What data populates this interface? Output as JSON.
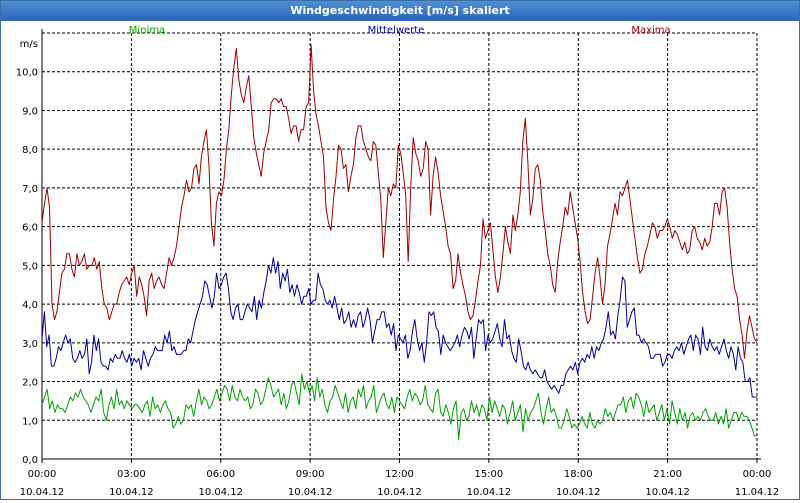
{
  "window": {
    "title": "Windgeschwindigkeit [m/s] skaliert"
  },
  "chart_data": {
    "type": "line",
    "title": "Windgeschwindigkeit [m/s] skaliert",
    "ylabel": "m/s",
    "ylim": [
      0,
      11
    ],
    "yticks": [
      "0,0",
      "1,0",
      "2,0",
      "3,0",
      "4,0",
      "5,0",
      "6,0",
      "7,0",
      "8,0",
      "9,0",
      "10,0"
    ],
    "xlim": [
      0,
      24
    ],
    "xticks": [
      {
        "time": "00:00",
        "date": "10.04.12"
      },
      {
        "time": "03:00",
        "date": "10.04.12"
      },
      {
        "time": "06:00",
        "date": "10.04.12"
      },
      {
        "time": "09:00",
        "date": "10.04.12"
      },
      {
        "time": "12:00",
        "date": "10.04.12"
      },
      {
        "time": "15:00",
        "date": "10.04.12"
      },
      {
        "time": "18:00",
        "date": "10.04.12"
      },
      {
        "time": "21:00",
        "date": "10.04.12"
      },
      {
        "time": "00:00",
        "date": "11.04.12"
      }
    ],
    "grid": true,
    "series": [
      {
        "name": "Minima",
        "color": "#00a000",
        "values": [
          1.4,
          1.6,
          1.8,
          1.3,
          1.5,
          1.2,
          1.4,
          1.3,
          1.3,
          1.2,
          1.4,
          1.6,
          1.5,
          1.7,
          1.6,
          1.8,
          1.6,
          1.5,
          1.4,
          1.2,
          1.4,
          1.6,
          1.5,
          1.8,
          1.2,
          1.0,
          1.4,
          1.6,
          1.3,
          1.8,
          1.4,
          1.5,
          1.3,
          1.5,
          1.4,
          1.3,
          1.4,
          1.4,
          1.3,
          1.2,
          1.4,
          1.5,
          1.1,
          1.6,
          1.3,
          1.4,
          1.2,
          1.4,
          1.5,
          1.3,
          1.2,
          0.8,
          0.9,
          1.1,
          0.9,
          1.0,
          1.4,
          1.3,
          1.4,
          1.1,
          1.5,
          1.8,
          1.4,
          1.6,
          1.5,
          1.3,
          1.4,
          1.6,
          1.8,
          1.5,
          1.7,
          1.9,
          1.8,
          1.5,
          1.9,
          1.6,
          1.5,
          1.8,
          1.6,
          1.5,
          1.6,
          1.3,
          1.4,
          1.8,
          1.7,
          1.4,
          1.5,
          1.8,
          2.1,
          1.9,
          1.6,
          1.7,
          1.8,
          1.4,
          1.7,
          1.3,
          1.5,
          1.9,
          2.0,
          1.7,
          1.4,
          2.2,
          1.8,
          2.0,
          1.7,
          1.9,
          1.5,
          2.1,
          1.6,
          1.8,
          1.4,
          1.2,
          1.5,
          1.6,
          1.9,
          1.7,
          1.5,
          1.3,
          1.7,
          1.2,
          1.5,
          1.6,
          1.3,
          1.8,
          1.6,
          1.9,
          1.3,
          1.5,
          1.6,
          1.9,
          1.2,
          1.4,
          1.6,
          1.7,
          1.4,
          1.3,
          1.6,
          1.2,
          1.6,
          1.5,
          1.4,
          1.3,
          1.6,
          1.8,
          1.5,
          1.7,
          1.6,
          1.4,
          1.5,
          1.9,
          1.4,
          1.3,
          1.2,
          1.7,
          1.8,
          1.2,
          1.1,
          1.4,
          1.2,
          0.9,
          1.3,
          1.5,
          0.5,
          1.2,
          1.3,
          1.0,
          1.1,
          1.5,
          1.2,
          1.4,
          1.1,
          1.4,
          1.3,
          1.0,
          1.6,
          1.2,
          1.5,
          1.3,
          1.1,
          1.4,
          1.3,
          0.9,
          1.2,
          1.5,
          1.0,
          1.2,
          1.4,
          0.7,
          1.3,
          1.0,
          1.2,
          1.3,
          1.5,
          1.7,
          1.2,
          0.9,
          1.3,
          1.6,
          1.2,
          1.3,
          1.1,
          0.8,
          0.8,
          1.0,
          1.3,
          1.1,
          0.8,
          0.9,
          0.8,
          0.9,
          1.1,
          0.9,
          0.8,
          1.2,
          0.9,
          0.8,
          1.0,
          0.9,
          1.0,
          1.3,
          1.1,
          1.2,
          1.0,
          1.2,
          1.4,
          1.4,
          1.6,
          1.2,
          1.5,
          1.6,
          1.3,
          1.7,
          1.6,
          1.4,
          1.1,
          1.5,
          1.2,
          1.3,
          1.4,
          1.0,
          1.2,
          1.4,
          1.0,
          1.3,
          0.9,
          1.5,
          1.2,
          0.9,
          1.3,
          1.0,
          1.2,
          0.8,
          1.1,
          1.2,
          1.0,
          1.1,
          1.0,
          1.2,
          1.3,
          1.1,
          1.0,
          1.0,
          1.2,
          0.9,
          1.1,
          0.9,
          1.3,
          0.8,
          1.0,
          1.2,
          1.2,
          1.0,
          1.2,
          1.1,
          1.1,
          1.0,
          0.8,
          0.6,
          0.6
        ]
      },
      {
        "name": "Mittelwerte",
        "color": "#0000a0",
        "values": [
          3.1,
          3.8,
          2.9,
          3.2,
          2.4,
          2.4,
          2.6,
          2.9,
          2.8,
          3.0,
          3.2,
          3.0,
          3.1,
          2.6,
          2.5,
          2.6,
          2.8,
          2.6,
          2.7,
          3.1,
          2.2,
          2.5,
          3.2,
          2.8,
          3.1,
          2.5,
          2.4,
          2.4,
          2.3,
          2.6,
          2.5,
          2.7,
          2.6,
          2.6,
          2.8,
          2.6,
          2.5,
          2.7,
          2.4,
          2.6,
          2.5,
          2.6,
          2.3,
          2.8,
          2.6,
          2.4,
          2.6,
          2.7,
          2.9,
          2.8,
          2.8,
          2.8,
          3.2,
          3.0,
          3.3,
          2.8,
          2.9,
          2.7,
          2.7,
          2.7,
          2.8,
          2.8,
          3.1,
          3.0,
          3.3,
          3.6,
          3.8,
          4.0,
          4.2,
          4.6,
          4.5,
          4.2,
          3.9,
          4.2,
          4.8,
          4.4,
          4.5,
          4.7,
          4.8,
          4.4,
          3.8,
          3.6,
          3.9,
          4.0,
          3.6,
          3.6,
          3.8,
          4.0,
          3.9,
          3.8,
          4.2,
          3.6,
          4.1,
          3.9,
          4.3,
          4.6,
          5.0,
          4.8,
          5.2,
          4.8,
          5.1,
          4.4,
          4.8,
          4.6,
          4.9,
          4.3,
          4.5,
          4.2,
          4.5,
          4.3,
          4.0,
          4.2,
          4.2,
          4.4,
          4.0,
          4.1,
          4.1,
          4.8,
          4.5,
          4.4,
          4.1,
          4.0,
          4.1,
          3.9,
          4.2,
          3.9,
          3.6,
          3.9,
          3.5,
          3.6,
          3.8,
          3.4,
          3.6,
          3.4,
          3.7,
          3.8,
          3.4,
          3.6,
          3.9,
          3.6,
          3.0,
          3.3,
          3.6,
          3.6,
          3.8,
          3.8,
          3.4,
          3.5,
          3.2,
          3.5,
          2.8,
          3.2,
          3.1,
          3.0,
          3.2,
          2.6,
          2.8,
          3.3,
          3.6,
          3.1,
          2.8,
          3.0,
          2.5,
          3.0,
          3.8,
          3.7,
          3.8,
          3.4,
          3.3,
          2.7,
          3.2,
          3.0,
          2.9,
          2.8,
          2.9,
          3.0,
          3.2,
          2.9,
          3.2,
          3.4,
          3.3,
          3.1,
          3.4,
          2.6,
          3.1,
          3.6,
          3.5,
          3.6,
          2.8,
          3.2,
          3.0,
          3.1,
          3.3,
          3.5,
          3.1,
          2.9,
          3.6,
          3.1,
          3.2,
          2.8,
          2.6,
          2.5,
          3.1,
          2.8,
          2.4,
          2.3,
          2.5,
          2.3,
          2.2,
          2.3,
          2.2,
          2.1,
          2.1,
          2.3,
          2.0,
          1.9,
          1.8,
          1.9,
          1.8,
          1.7,
          1.9,
          1.9,
          2.2,
          2.3,
          2.4,
          2.3,
          2.5,
          2.2,
          2.5,
          2.6,
          2.5,
          2.7,
          2.6,
          2.9,
          2.6,
          2.9,
          2.8,
          3.0,
          3.1,
          3.4,
          3.8,
          3.2,
          3.3,
          3.1,
          3.7,
          4.1,
          4.7,
          4.6,
          3.4,
          3.6,
          3.8,
          3.9,
          3.2,
          3.2,
          3.0,
          3.1,
          3.0,
          2.9,
          2.6,
          2.6,
          2.7,
          2.7,
          2.7,
          2.4,
          2.5,
          2.7,
          2.7,
          2.6,
          2.8,
          2.9,
          2.8,
          3.0,
          2.7,
          2.9,
          3.1,
          3.2,
          2.8,
          3.2,
          3.1,
          2.7,
          3.4,
          2.9,
          2.8,
          3.1,
          2.9,
          2.8,
          2.9,
          2.7,
          2.9,
          3.1,
          2.8,
          2.6,
          2.9,
          2.7,
          2.3,
          2.9,
          2.6,
          2.5,
          2.0,
          2.0,
          2.1,
          1.6,
          1.6,
          1.6
        ]
      },
      {
        "name": "Maxima",
        "color": "#a00000",
        "values": [
          6.1,
          6.6,
          7.0,
          6.5,
          4.0,
          3.6,
          3.8,
          4.3,
          4.8,
          4.9,
          5.3,
          5.3,
          4.9,
          4.7,
          5.3,
          5.0,
          5.1,
          5.3,
          4.9,
          5.0,
          5.0,
          5.2,
          4.9,
          5.1,
          4.4,
          4.0,
          3.9,
          3.6,
          3.8,
          4.0,
          4.0,
          4.3,
          4.5,
          4.6,
          4.7,
          4.5,
          4.8,
          5.0,
          4.2,
          4.7,
          4.5,
          4.2,
          3.7,
          4.6,
          4.8,
          4.4,
          4.6,
          4.7,
          4.5,
          4.4,
          4.8,
          5.2,
          5.0,
          5.2,
          5.5,
          6.0,
          6.5,
          6.8,
          7.2,
          6.9,
          7.0,
          7.5,
          7.6,
          7.1,
          7.8,
          8.2,
          8.5,
          7.6,
          6.1,
          5.5,
          6.6,
          6.9,
          6.8,
          7.2,
          8.0,
          8.5,
          9.4,
          10.1,
          10.6,
          9.8,
          9.4,
          9.2,
          9.6,
          9.9,
          9.1,
          8.3,
          7.9,
          7.6,
          7.3,
          7.9,
          8.2,
          8.5,
          9.2,
          9.3,
          9.3,
          9.2,
          9.3,
          9.1,
          9.1,
          8.8,
          8.4,
          8.6,
          8.6,
          8.2,
          8.5,
          8.5,
          9.1,
          9.2,
          10.7,
          9.5,
          8.9,
          8.6,
          8.2,
          7.8,
          6.5,
          6.1,
          5.9,
          6.7,
          7.3,
          8.1,
          8.0,
          7.5,
          7.6,
          6.9,
          7.3,
          7.6,
          8.3,
          8.6,
          8.6,
          8.2,
          8.0,
          7.8,
          7.7,
          8.2,
          8.1,
          7.4,
          6.7,
          5.2,
          6.1,
          7.0,
          6.8,
          7.1,
          7.0,
          8.1,
          7.9,
          7.4,
          6.8,
          5.1,
          7.0,
          8.3,
          7.9,
          7.7,
          7.3,
          7.5,
          8.2,
          8.0,
          6.3,
          7.3,
          7.8,
          7.4,
          6.8,
          6.4,
          6.0,
          5.5,
          5.3,
          4.4,
          4.6,
          5.3,
          4.8,
          4.5,
          4.2,
          3.8,
          3.6,
          3.7,
          4.1,
          4.6,
          5.0,
          6.2,
          5.7,
          5.9,
          6.1,
          5.4,
          4.7,
          4.3,
          4.7,
          5.3,
          6.0,
          5.6,
          5.3,
          6.3,
          5.9,
          6.3,
          6.9,
          8.2,
          8.8,
          7.7,
          6.3,
          6.7,
          7.5,
          7.6,
          7.2,
          6.4,
          5.9,
          5.3,
          5.0,
          4.5,
          4.3,
          5.1,
          5.6,
          6.0,
          6.5,
          6.3,
          6.9,
          6.5,
          6.1,
          5.7,
          5.1,
          4.3,
          3.8,
          3.5,
          3.6,
          4.2,
          4.8,
          5.2,
          4.7,
          4.0,
          4.5,
          5.5,
          5.8,
          6.2,
          6.6,
          6.3,
          6.9,
          6.8,
          7.0,
          7.2,
          6.7,
          6.2,
          5.7,
          5.2,
          4.8,
          4.9,
          5.3,
          5.5,
          5.8,
          6.1,
          6.0,
          5.7,
          5.9,
          5.9,
          6.0,
          6.2,
          6.0,
          5.7,
          5.9,
          5.8,
          5.6,
          5.4,
          5.6,
          5.3,
          5.4,
          5.9,
          6.0,
          5.7,
          5.6,
          5.4,
          5.7,
          5.5,
          5.6,
          6.0,
          6.6,
          6.6,
          6.3,
          6.9,
          7.0,
          6.5,
          5.6,
          4.9,
          4.4,
          4.2,
          3.6,
          3.2,
          2.6,
          3.3,
          3.7,
          3.4,
          3.1,
          3.0
        ]
      }
    ]
  }
}
